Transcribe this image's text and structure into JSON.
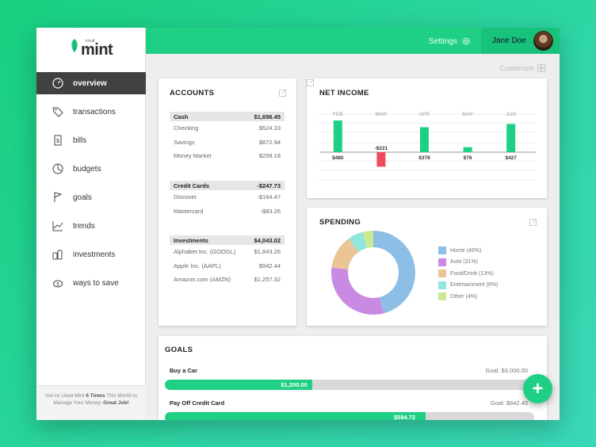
{
  "brand": {
    "small": "intuit",
    "name": "mint"
  },
  "colors": {
    "accent": "#1fcf84",
    "negative": "#ef4a60"
  },
  "sidebar": {
    "items": [
      {
        "label": "overview",
        "icon": "speedometer-icon",
        "active": true
      },
      {
        "label": "transactions",
        "icon": "tag-icon"
      },
      {
        "label": "bills",
        "icon": "bill-icon"
      },
      {
        "label": "budgets",
        "icon": "pie-clock-icon"
      },
      {
        "label": "goals",
        "icon": "flag-icon"
      },
      {
        "label": "trends",
        "icon": "line-chart-icon"
      },
      {
        "label": "investments",
        "icon": "coins-icon"
      },
      {
        "label": "ways to save",
        "icon": "piggy-bank-icon"
      }
    ],
    "footer": {
      "pre": "You've Used Mint ",
      "times": "6 Times",
      "mid": " This Month to Manage Your Money. ",
      "praise": "Great Job!"
    }
  },
  "topbar": {
    "settings_label": "Settings",
    "user_name": "Jane Doe"
  },
  "customize_label": "Customize",
  "accounts": {
    "title": "ACCOUNTS",
    "sections": [
      {
        "name": "Cash",
        "total": "$1,656.45",
        "rows": [
          {
            "name": "Checking",
            "value": "$524.33"
          },
          {
            "name": "Savings",
            "value": "$872.94"
          },
          {
            "name": "Money Market",
            "value": "$259.18"
          }
        ]
      },
      {
        "name": "Credit Cards",
        "total": "-$247.73",
        "rows": [
          {
            "name": "Discover",
            "value": "-$164.47"
          },
          {
            "name": "Mastercard",
            "value": "-$83.26"
          }
        ]
      },
      {
        "name": "Investments",
        "total": "$4,043.02",
        "rows": [
          {
            "name": "Alphabet Inc. (GOOGL)",
            "value": "$1,843.26"
          },
          {
            "name": "Apple Inc. (AAPL)",
            "value": "$942.44"
          },
          {
            "name": "Amazon.com (AMZN)",
            "value": "$1,257.32"
          }
        ]
      }
    ]
  },
  "net_income": {
    "title": "NET INCOME",
    "chart_data": {
      "type": "bar",
      "categories": [
        "FEB",
        "MAR",
        "APR",
        "MAY",
        "JUN"
      ],
      "values": [
        480,
        -221,
        378,
        76,
        427
      ],
      "value_labels": [
        "$480",
        "-$221",
        "$378",
        "$76",
        "$427"
      ]
    }
  },
  "spending": {
    "title": "SPENDING",
    "chart_data": {
      "type": "pie",
      "categories": [
        "Home",
        "Auto",
        "Food/Drink",
        "Entertainment",
        "Other"
      ],
      "values": [
        46,
        31,
        13,
        6,
        4
      ],
      "legend": [
        "Home (46%)",
        "Auto (31%)",
        "Food/Drink (13%)",
        "Entertainment (6%)",
        "Other (4%)"
      ],
      "colors": [
        "#8dbfe6",
        "#c98ae3",
        "#ebc596",
        "#8fe6dc",
        "#cbe892"
      ]
    }
  },
  "goals": {
    "title": "GOALS",
    "items": [
      {
        "name": "Buy a Car",
        "target": "Goal: $3,000.00",
        "amount": "$1,200.00",
        "progress": 0.4
      },
      {
        "name": "Pay Off Credit Card",
        "target": "Goal: $842.45",
        "amount": "$594.72",
        "progress": 0.706
      }
    ]
  },
  "fab_label": "+"
}
